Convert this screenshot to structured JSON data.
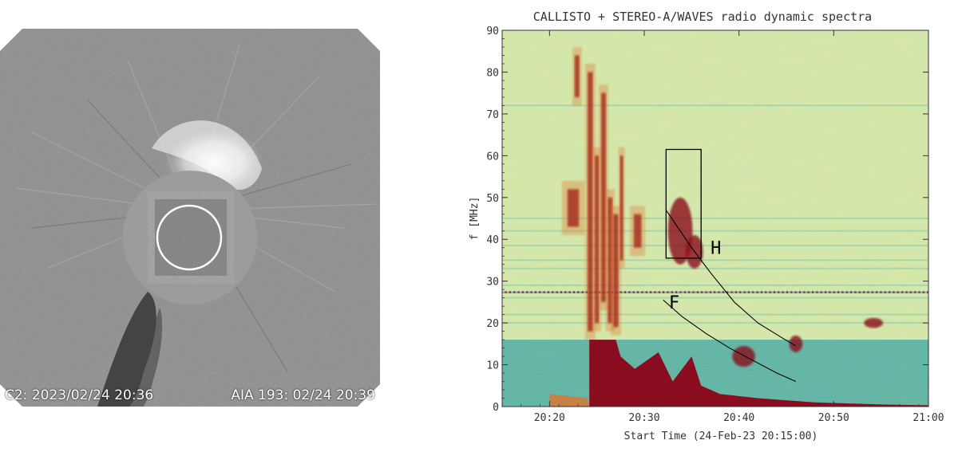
{
  "coronagraph": {
    "left_label": "C2: 2023/02/24 20:36",
    "right_label": "AIA 193: 02/24 20:39"
  },
  "chart_data": {
    "type": "heatmap",
    "title": "CALLISTO + STEREO-A/WAVES radio dynamic spectra",
    "xlabel": "Start Time (24-Feb-23 20:15:00)",
    "ylabel": "f [MHz]",
    "x_ticks": [
      "20:20",
      "20:30",
      "20:40",
      "20:50",
      "21:00"
    ],
    "x_tick_minutes": [
      20,
      30,
      40,
      50,
      60
    ],
    "xlim_minutes_after_2000": [
      15,
      60
    ],
    "y_ticks": [
      0,
      10,
      20,
      30,
      40,
      50,
      60,
      70,
      80,
      90
    ],
    "ylim": [
      0,
      90
    ],
    "colormap": [
      "#8a0d1f",
      "#e0732e",
      "#f2df9a",
      "#d8e8a2",
      "#79c4a9",
      "#2f7fb5"
    ],
    "bands": {
      "high_frequency_instrument_range_MHz": [
        16,
        90
      ],
      "low_frequency_instrument_range_MHz": [
        0,
        16
      ]
    },
    "annotations": {
      "harmonic_label": "H",
      "fundamental_label": "F",
      "box": {
        "t0": 32.3,
        "t1": 36.0,
        "f0": 35.5,
        "f1": 61.5
      },
      "harmonic_fit": {
        "t": [
          32.3,
          33.5,
          35.0,
          37.0,
          39.5,
          42.0,
          44.5,
          46.0
        ],
        "f": [
          47.0,
          43.0,
          38.0,
          32.0,
          25.0,
          20.0,
          16.5,
          14.5
        ]
      },
      "fundamental_fit": {
        "t": [
          32.0,
          34.0,
          36.5,
          39.0,
          41.5,
          44.0,
          46.0
        ],
        "f": [
          25.5,
          21.5,
          17.5,
          14.0,
          11.0,
          8.0,
          6.0
        ]
      }
    }
  }
}
